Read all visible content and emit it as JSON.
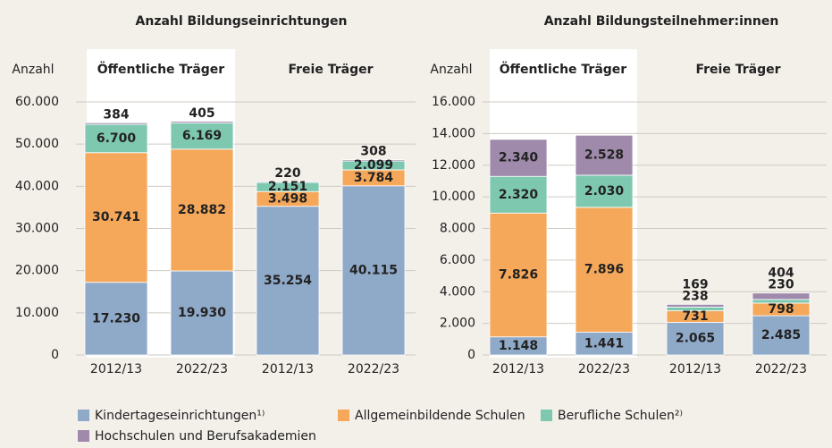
{
  "chart_data": [
    {
      "type": "stacked_bar",
      "title": "Anzahl Bildungseinrichtungen",
      "ylabel": "Anzahl",
      "groups": [
        "Öffentliche Träger",
        "Freie Träger"
      ],
      "categories": [
        "2012/13",
        "2022/23",
        "2012/13",
        "2022/23"
      ],
      "ylim": [
        0,
        60000
      ],
      "yticks": [
        0,
        {
          "value": 10000,
          "label": "10.000"
        },
        {
          "value": 20000,
          "label": "20.000"
        },
        {
          "value": 30000,
          "label": "30.000"
        },
        {
          "value": 40000,
          "label": "40.000"
        },
        {
          "value": 50000,
          "label": "50.000"
        },
        {
          "value": 60000,
          "label": "60.000"
        }
      ],
      "grid": true,
      "series": [
        {
          "name": "Kindertageseinrichtungen¹⁾",
          "color": "#8fa9c8",
          "values": [
            17230,
            19930,
            35254,
            40115
          ],
          "value_labels": [
            "17.230",
            "19.930",
            "35.254",
            "40.115"
          ]
        },
        {
          "name": "Allgemeinbildende Schulen",
          "color": "#f5a75a",
          "values": [
            30741,
            28882,
            3498,
            3784
          ],
          "value_labels": [
            "30.741",
            "28.882",
            "3.498",
            "3.784"
          ]
        },
        {
          "name": "Berufliche Schulen²⁾",
          "color": "#7ec8b0",
          "values": [
            6700,
            6169,
            2151,
            2099
          ],
          "value_labels": [
            "6.700",
            "6.169",
            "2.151",
            "2.099"
          ]
        },
        {
          "name": "Hochschulen und Berufsakademien",
          "color": "#a08aab",
          "values": [
            384,
            405,
            220,
            308
          ]
        }
      ]
    },
    {
      "type": "stacked_bar",
      "title": "Anzahl Bildungsteilnehmer:innen",
      "ylabel": "Anzahl",
      "groups": [
        "Öffentliche Träger",
        "Freie Träger"
      ],
      "categories": [
        "2012/13",
        "2022/23",
        "2012/13",
        "2022/23"
      ],
      "ylim": [
        0,
        16000
      ],
      "yticks": [
        0,
        {
          "value": 2000,
          "label": "2.000"
        },
        {
          "value": 4000,
          "label": "4.000"
        },
        {
          "value": 6000,
          "label": "6.000"
        },
        {
          "value": 8000,
          "label": "8.000"
        },
        {
          "value": 10000,
          "label": "10.000"
        },
        {
          "value": 12000,
          "label": "12.000"
        },
        {
          "value": 14000,
          "label": "14.000"
        },
        {
          "value": 16000,
          "label": "16.000"
        }
      ],
      "grid": true,
      "series": [
        {
          "color": "#8fa9c8",
          "values": [
            1148,
            1441,
            2065,
            2485
          ],
          "value_labels": [
            "1.148",
            "1.441",
            "2.065",
            "2.485"
          ]
        },
        {
          "color": "#f5a75a",
          "values": [
            7826,
            7896,
            731,
            798
          ],
          "value_labels": [
            "7.826",
            "7.896",
            "731",
            "798"
          ]
        },
        {
          "color": "#7ec8b0",
          "values": [
            2320,
            2030,
            238,
            230
          ],
          "value_labels": [
            "2.320",
            "2.030",
            "238",
            "230"
          ]
        },
        {
          "color": "#a08aab",
          "values": [
            2340,
            2528,
            169,
            404
          ],
          "value_labels": [
            "2.340",
            "2.528",
            "169",
            "404"
          ]
        }
      ]
    }
  ]
}
